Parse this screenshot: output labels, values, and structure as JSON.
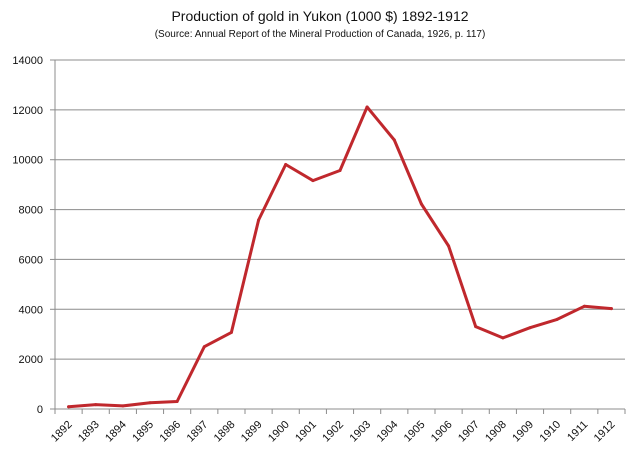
{
  "chart_data": {
    "type": "line",
    "title": "Production of gold in Yukon  (1000 $) 1892-1912",
    "subtitle": "(Source: Annual Report of the Mineral Production  of Canada, 1926, p. 117)",
    "xlabel": "",
    "ylabel": "",
    "categories": [
      "1892",
      "1893",
      "1894",
      "1895",
      "1896",
      "1897",
      "1898",
      "1899",
      "1900",
      "1901",
      "1902",
      "1903",
      "1904",
      "1905",
      "1906",
      "1907",
      "1908",
      "1909",
      "1910",
      "1911",
      "1912"
    ],
    "series": [
      {
        "values": [
          87,
          176,
          125,
          250,
          300,
          2500,
          3072,
          7582,
          9810,
          9162,
          9566,
          12113,
          10790,
          8222,
          6540,
          3304,
          2851,
          3260,
          3594,
          4120,
          4026
        ],
        "color": "#c0282d"
      }
    ],
    "ylim": [
      0,
      14000
    ],
    "yticks": [
      "0",
      "2000",
      "4000",
      "6000",
      "8000",
      "10000",
      "12000",
      "14000"
    ],
    "grid": true,
    "legend": "none"
  }
}
